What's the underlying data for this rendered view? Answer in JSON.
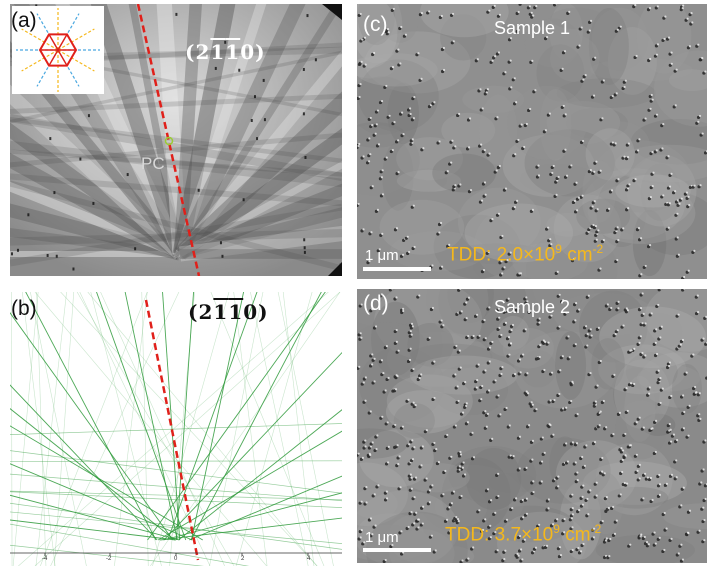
{
  "panel_a": {
    "label": "(a)",
    "plane": {
      "open": "(",
      "d1": "2",
      "d2": "1",
      "d3": "1",
      "d4": "0",
      "close": ")"
    },
    "pc_label": "PC",
    "colors": {
      "trace": "#e0201a",
      "pc_marker": "#9acd32",
      "inset_hex": "#e0201a",
      "inset_dash_1": "#f5b81c",
      "inset_dash_2": "#4aa8e0"
    }
  },
  "panel_b": {
    "label": "(b)",
    "plane": {
      "open": "(",
      "d1": "2",
      "d2": "1",
      "d3": "1",
      "d4": "0",
      "close": ")"
    },
    "axis_ticks": [
      "-4",
      "-2",
      "0",
      "2",
      "4"
    ],
    "colors": {
      "bands": "#2e9a3a",
      "trace": "#e0201a"
    }
  },
  "panel_c": {
    "label": "(c)",
    "title": "Sample 1",
    "scale_label": "1 μm",
    "tdd_prefix": "TDD: 2.0×10",
    "tdd_exp": "9",
    "tdd_unit": " cm",
    "tdd_unit_exp": "-2"
  },
  "panel_d": {
    "label": "(d)",
    "title": "Sample 2",
    "scale_label": "1 μm",
    "tdd_prefix": "TDD: 3.7×10",
    "tdd_exp": "9",
    "tdd_unit": " cm",
    "tdd_unit_exp": "-2"
  }
}
